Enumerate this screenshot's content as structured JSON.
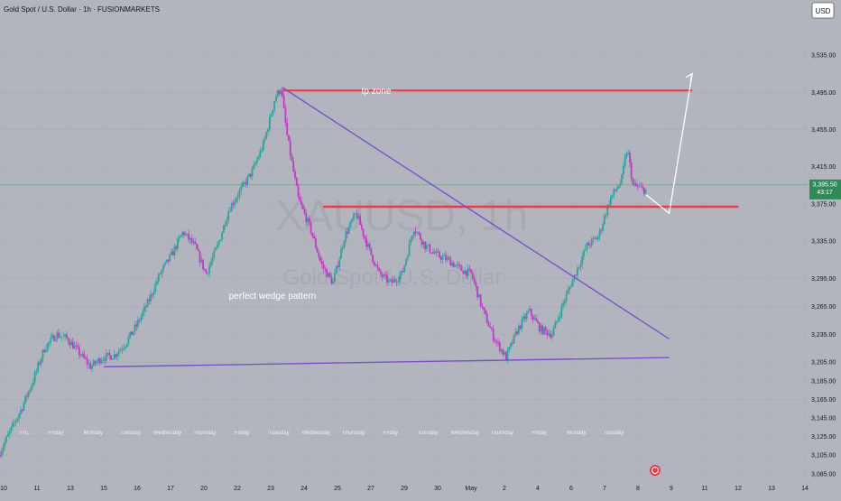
{
  "header": {
    "symbol_line": "Gold Spot / U.S. Dollar · 1h · FUSIONMARKETS",
    "currency_badge": "USD"
  },
  "watermark": {
    "big": "XAUUSD, 1h",
    "small": "Gold Spot / U.S. Dollar"
  },
  "annotations": {
    "tp_zone": "tp zone",
    "pattern": "perfect wedge pattern"
  },
  "price_tag": {
    "price": "3,395.50",
    "countdown": "43:17"
  },
  "colors": {
    "bull": "#27a69a",
    "bear": "#c936c9",
    "red_line": "#f23645",
    "purple_line": "#7b4fd1",
    "arrow": "#ffffff",
    "tag": "#2e8b57"
  },
  "chart_data": {
    "type": "candlestick",
    "y_ticks": [
      3535,
      3495,
      3455,
      3415,
      3375,
      3335,
      3295,
      3265,
      3235,
      3205,
      3185,
      3165,
      3145,
      3125,
      3105,
      3085
    ],
    "y_tick_labels": [
      "3,535.00",
      "3,495.00",
      "3,455.00",
      "3,415.00",
      "3,375.00",
      "3,335.00",
      "3,295.00",
      "3,265.00",
      "3,235.00",
      "3,205.00",
      "3,185.00",
      "3,165.00",
      "3,145.00",
      "3,125.00",
      "3,105.00",
      "3,085.00"
    ],
    "x_date_labels": [
      "10",
      "11",
      "13",
      "15",
      "16",
      "17",
      "20",
      "22",
      "23",
      "24",
      "25",
      "27",
      "29",
      "30",
      "May",
      "2",
      "4",
      "6",
      "7",
      "8",
      "9",
      "11",
      "12",
      "13",
      "14"
    ],
    "x_day_labels": [
      "Friday",
      "Monday",
      "Tuesday",
      "Wednesday",
      "Thursday",
      "Friday",
      "Tuesday",
      "Wednesday",
      "Thursday",
      "Friday",
      "Tuesday",
      "Wednesday",
      "Thursday",
      "Friday",
      "Monday",
      "Tuesday"
    ],
    "x_day_label_visible": "Fri...",
    "tp_zone_level": 3497,
    "support_level": 3372,
    "current_price": 3395.5,
    "price_path": [
      [
        0,
        3105
      ],
      [
        4,
        3130
      ],
      [
        8,
        3155
      ],
      [
        12,
        3185
      ],
      [
        16,
        3220
      ],
      [
        20,
        3235
      ],
      [
        24,
        3230
      ],
      [
        28,
        3215
      ],
      [
        32,
        3200
      ],
      [
        36,
        3210
      ],
      [
        40,
        3212
      ],
      [
        44,
        3225
      ],
      [
        48,
        3245
      ],
      [
        52,
        3270
      ],
      [
        56,
        3300
      ],
      [
        60,
        3320
      ],
      [
        64,
        3345
      ],
      [
        68,
        3330
      ],
      [
        72,
        3300
      ],
      [
        76,
        3330
      ],
      [
        80,
        3370
      ],
      [
        84,
        3390
      ],
      [
        88,
        3410
      ],
      [
        92,
        3440
      ],
      [
        96,
        3490
      ],
      [
        98,
        3500
      ],
      [
        100,
        3450
      ],
      [
        104,
        3380
      ],
      [
        108,
        3350
      ],
      [
        112,
        3310
      ],
      [
        116,
        3290
      ],
      [
        120,
        3340
      ],
      [
        124,
        3365
      ],
      [
        128,
        3330
      ],
      [
        132,
        3300
      ],
      [
        136,
        3290
      ],
      [
        140,
        3300
      ],
      [
        144,
        3350
      ],
      [
        148,
        3330
      ],
      [
        152,
        3320
      ],
      [
        156,
        3315
      ],
      [
        160,
        3305
      ],
      [
        164,
        3300
      ],
      [
        168,
        3260
      ],
      [
        172,
        3230
      ],
      [
        176,
        3210
      ],
      [
        180,
        3240
      ],
      [
        184,
        3260
      ],
      [
        188,
        3240
      ],
      [
        192,
        3235
      ],
      [
        196,
        3270
      ],
      [
        200,
        3300
      ],
      [
        204,
        3330
      ],
      [
        208,
        3340
      ],
      [
        212,
        3380
      ],
      [
        216,
        3400
      ],
      [
        218,
        3435
      ],
      [
        220,
        3395
      ],
      [
        224,
        3390
      ]
    ],
    "wedge_upper": [
      [
        98,
        3500
      ],
      [
        232,
        3230
      ]
    ],
    "wedge_lower": [
      [
        36,
        3200
      ],
      [
        232,
        3210
      ]
    ],
    "projection": [
      [
        224,
        3385
      ],
      [
        232,
        3365
      ],
      [
        240,
        3515
      ]
    ],
    "x_range": [
      0,
      280
    ],
    "y_range": [
      3080,
      3570
    ]
  }
}
